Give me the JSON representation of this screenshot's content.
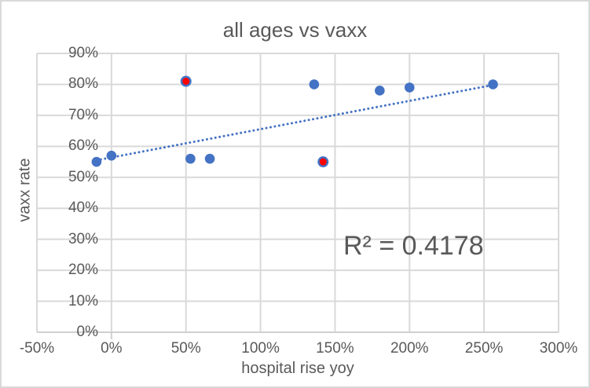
{
  "frame": {
    "background": "#ffffff",
    "border_color": "#d9d9d9"
  },
  "chart_data": {
    "type": "scatter",
    "title": "all ages vs vaxx",
    "xlabel": "hospital rise yoy",
    "ylabel": "vaxx rate",
    "annotation": "R² = 0.4178",
    "legend": "none",
    "grid": true,
    "gridline_color": "#d9d9d9",
    "axis_line_color": "#d0d0d0",
    "text_color": "#595959",
    "axis": {
      "xlim": [
        -50,
        300
      ],
      "ylim": [
        0,
        90
      ],
      "x_ticks": [
        {
          "value": -50,
          "label": "-50%"
        },
        {
          "value": 0,
          "label": "0%"
        },
        {
          "value": 50,
          "label": "50%"
        },
        {
          "value": 100,
          "label": "100%"
        },
        {
          "value": 150,
          "label": "150%"
        },
        {
          "value": 200,
          "label": "200%"
        },
        {
          "value": 250,
          "label": "250%"
        },
        {
          "value": 300,
          "label": "300%"
        }
      ],
      "y_ticks": [
        {
          "value": 0,
          "label": "0%"
        },
        {
          "value": 10,
          "label": "10%"
        },
        {
          "value": 20,
          "label": "20%"
        },
        {
          "value": 30,
          "label": "30%"
        },
        {
          "value": 40,
          "label": "40%"
        },
        {
          "value": 50,
          "label": "50%"
        },
        {
          "value": 60,
          "label": "60%"
        },
        {
          "value": 70,
          "label": "70%"
        },
        {
          "value": 80,
          "label": "80%"
        },
        {
          "value": 90,
          "label": "90%"
        }
      ]
    },
    "series": [
      {
        "name": "all ages vs vaxx",
        "marker_color": "#4472c4",
        "points": [
          {
            "x": -10,
            "y": 55
          },
          {
            "x": 0,
            "y": 57
          },
          {
            "x": 50,
            "y": 81,
            "highlight": true
          },
          {
            "x": 53,
            "y": 56
          },
          {
            "x": 66,
            "y": 56
          },
          {
            "x": 136,
            "y": 80
          },
          {
            "x": 142,
            "y": 55,
            "highlight": true
          },
          {
            "x": 180,
            "y": 78
          },
          {
            "x": 200,
            "y": 79
          },
          {
            "x": 256,
            "y": 80
          }
        ]
      }
    ],
    "highlight_color": "#ff0000",
    "trendline": {
      "style": "dotted",
      "color": "#4472c4",
      "x1": -10,
      "y1": 55.5,
      "x2": 256,
      "y2": 79.8
    }
  }
}
